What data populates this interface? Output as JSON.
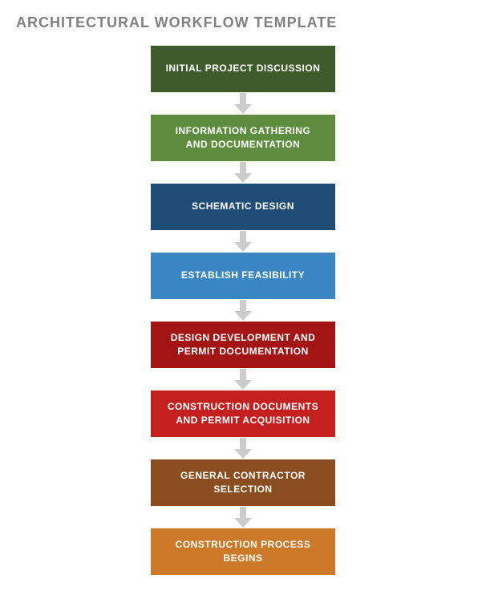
{
  "title": "ARCHITECTURAL WORKFLOW TEMPLATE",
  "layout": {
    "type": "flowchart",
    "direction": "vertical",
    "step_width": 230,
    "step_height": 58,
    "step_fontsize": 12,
    "step_fontweight": "bold",
    "step_text_color": "#ffffff",
    "title_color": "#808080",
    "title_fontsize": 18,
    "arrow_color": "#cccccc",
    "arrow_shaft_width": 8,
    "arrow_shaft_height": 14,
    "arrow_head_width": 22,
    "arrow_head_height": 12,
    "background_color": "#ffffff"
  },
  "steps": [
    {
      "label": "INITIAL PROJECT DISCUSSION",
      "color": "#3e5c2b"
    },
    {
      "label": "INFORMATION GATHERING AND DOCUMENTATION",
      "color": "#5d8c3f"
    },
    {
      "label": "SCHEMATIC DESIGN",
      "color": "#1f4d75"
    },
    {
      "label": "ESTABLISH FEASIBILITY",
      "color": "#3a86c3"
    },
    {
      "label": "DESIGN DEVELOPMENT AND PERMIT DOCUMENTATION",
      "color": "#a31515"
    },
    {
      "label": "CONSTRUCTION DOCUMENTS AND PERMIT ACQUISITION",
      "color": "#c42020"
    },
    {
      "label": "GENERAL CONTRACTOR SELECTION",
      "color": "#8a4d1f"
    },
    {
      "label": "CONSTRUCTION PROCESS BEGINS",
      "color": "#cc7a29"
    }
  ]
}
